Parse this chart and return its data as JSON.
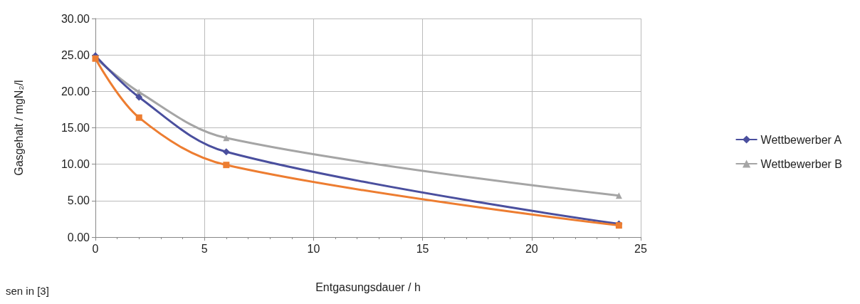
{
  "chart_data": {
    "type": "line",
    "xlabel": "Entgasungsdauer / h",
    "ylabel": "Gasgehalt / mgN₂/l",
    "series": [
      {
        "color": "#ed7d31",
        "marker": "square",
        "x": [
          0,
          2,
          6,
          24
        ],
        "values": [
          24.5,
          16.4,
          9.9,
          1.6
        ]
      },
      {
        "name": "Wettbewerber A",
        "color": "#4a4f9e",
        "marker": "diamond",
        "x": [
          0,
          2,
          6,
          24
        ],
        "values": [
          24.9,
          19.2,
          11.7,
          1.8
        ]
      },
      {
        "name": "Wettbewerber B",
        "color": "#a5a5a5",
        "marker": "triangle",
        "x": [
          0,
          2,
          6,
          24
        ],
        "values": [
          24.6,
          19.9,
          13.6,
          5.7
        ]
      }
    ],
    "xlim": [
      0,
      25
    ],
    "xticks": [
      0,
      5,
      10,
      15,
      20,
      25
    ],
    "ylim": [
      0,
      30
    ],
    "yticks": [
      {
        "value": 0,
        "label": "0.00"
      },
      {
        "value": 5,
        "label": "5.00"
      },
      {
        "value": 10,
        "label": "10.00"
      },
      {
        "value": 15,
        "label": "15.00"
      },
      {
        "value": 20,
        "label": "20.00"
      },
      {
        "value": 25,
        "label": "25.00"
      },
      {
        "value": 30,
        "label": "30.00"
      }
    ],
    "grid": true,
    "legend": "right",
    "line_style": "solid",
    "annotations": [
      "sen in [3]"
    ]
  }
}
